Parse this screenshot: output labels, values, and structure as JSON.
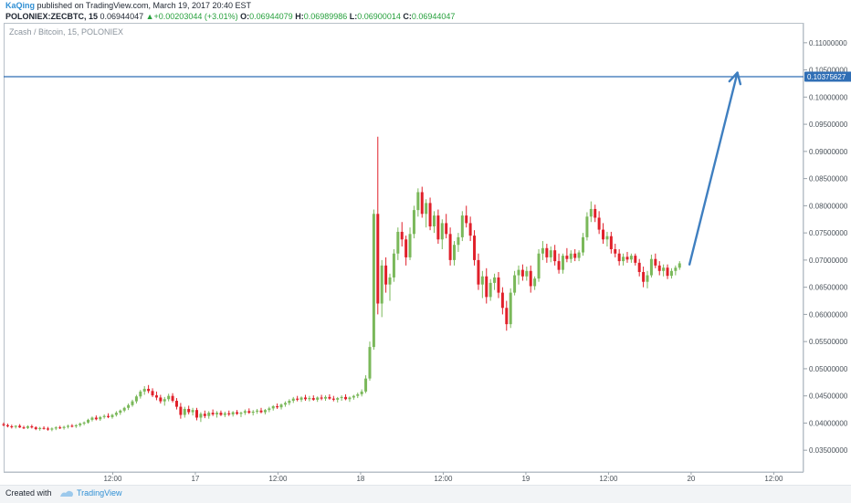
{
  "header": {
    "author": "KaQing",
    "published": "published on TradingView.com, March 19, 2017 20:40 EST",
    "symbol": "POLONIEX:ZECBTC, 15",
    "last": "0.06944047",
    "change": "+0.00203044 (+3.01%)",
    "open_label": "O:",
    "open": "0.06944079",
    "high_label": "H:",
    "high": "0.06989986",
    "low_label": "L:",
    "low": "0.06900014",
    "close_label": "C:",
    "close": "0.06944047",
    "up_color": "#26a03c"
  },
  "footer": {
    "created_with": "Created with",
    "brand": "TradingView"
  },
  "chart_data": {
    "type": "candlestick",
    "title": "Zcash / Bitcoin, 15, POLONIEX",
    "y_ticks": [
      "0.11000000",
      "0.10500000",
      "0.10000000",
      "0.09500000",
      "0.09000000",
      "0.08500000",
      "0.08000000",
      "0.07500000",
      "0.07000000",
      "0.06500000",
      "0.06000000",
      "0.05500000",
      "0.05000000",
      "0.04500000",
      "0.04000000",
      "0.03500000"
    ],
    "y_tick_values": [
      0.11,
      0.105,
      0.1,
      0.095,
      0.09,
      0.085,
      0.08,
      0.075,
      0.07,
      0.065,
      0.06,
      0.055,
      0.05,
      0.045,
      0.04,
      0.035
    ],
    "ylim": [
      0.031,
      0.1135
    ],
    "x_ticks": [
      "12:00",
      "17",
      "12:00",
      "18",
      "12:00",
      "19",
      "12:00",
      "20",
      "12:00"
    ],
    "x_tick_values": [
      0.5,
      1.0,
      1.5,
      2.0,
      2.5,
      3.0,
      3.5,
      4.0,
      4.5
    ],
    "xlim": [
      -0.16,
      4.68
    ],
    "horizontal_line": {
      "value": 0.10375627,
      "label": "0.10375627",
      "color": "#2f6eb5"
    },
    "arrow": {
      "from": [
        3.99,
        0.0692
      ],
      "to": [
        4.28,
        0.1045
      ],
      "color": "#3f7fc0"
    },
    "up_color": "#7ab85a",
    "down_color": "#e0202a",
    "candles_ohlc": [
      [
        0.0398,
        0.0401,
        0.0394,
        0.0396
      ],
      [
        0.0396,
        0.0399,
        0.0392,
        0.0394
      ],
      [
        0.0394,
        0.0397,
        0.039,
        0.0393
      ],
      [
        0.0393,
        0.0396,
        0.039,
        0.0395
      ],
      [
        0.0395,
        0.0398,
        0.0391,
        0.0392
      ],
      [
        0.0392,
        0.0395,
        0.0389,
        0.0391
      ],
      [
        0.0391,
        0.0396,
        0.0389,
        0.0394
      ],
      [
        0.0394,
        0.0397,
        0.039,
        0.0392
      ],
      [
        0.0392,
        0.0394,
        0.0387,
        0.0389
      ],
      [
        0.0389,
        0.0393,
        0.0386,
        0.0391
      ],
      [
        0.0391,
        0.0394,
        0.0388,
        0.039
      ],
      [
        0.039,
        0.0393,
        0.0386,
        0.0388
      ],
      [
        0.0388,
        0.0392,
        0.0385,
        0.039
      ],
      [
        0.039,
        0.0394,
        0.0387,
        0.0392
      ],
      [
        0.0392,
        0.0395,
        0.0389,
        0.0391
      ],
      [
        0.0391,
        0.0395,
        0.0388,
        0.0393
      ],
      [
        0.0393,
        0.0397,
        0.039,
        0.0395
      ],
      [
        0.0395,
        0.0398,
        0.0392,
        0.0394
      ],
      [
        0.0394,
        0.0398,
        0.0391,
        0.0396
      ],
      [
        0.0396,
        0.0401,
        0.0393,
        0.0399
      ],
      [
        0.0399,
        0.0403,
        0.0396,
        0.0401
      ],
      [
        0.0401,
        0.0408,
        0.0399,
        0.0406
      ],
      [
        0.0406,
        0.0412,
        0.0403,
        0.041
      ],
      [
        0.041,
        0.0414,
        0.0405,
        0.0407
      ],
      [
        0.0407,
        0.0413,
        0.0404,
        0.0411
      ],
      [
        0.0411,
        0.0416,
        0.0408,
        0.0413
      ],
      [
        0.0413,
        0.0418,
        0.0409,
        0.0411
      ],
      [
        0.0411,
        0.0417,
        0.0408,
        0.0415
      ],
      [
        0.0415,
        0.0422,
        0.0412,
        0.0419
      ],
      [
        0.0419,
        0.0425,
        0.0415,
        0.0423
      ],
      [
        0.0423,
        0.043,
        0.042,
        0.0428
      ],
      [
        0.0428,
        0.0436,
        0.0424,
        0.0433
      ],
      [
        0.0433,
        0.0443,
        0.043,
        0.044
      ],
      [
        0.044,
        0.0452,
        0.0436,
        0.0449
      ],
      [
        0.0449,
        0.0461,
        0.0445,
        0.0458
      ],
      [
        0.0458,
        0.0468,
        0.0452,
        0.0463
      ],
      [
        0.0463,
        0.047,
        0.0455,
        0.0459
      ],
      [
        0.0459,
        0.0464,
        0.0448,
        0.0451
      ],
      [
        0.0451,
        0.0458,
        0.0442,
        0.0447
      ],
      [
        0.0447,
        0.0452,
        0.0436,
        0.044
      ],
      [
        0.044,
        0.0448,
        0.0432,
        0.0444
      ],
      [
        0.0444,
        0.0454,
        0.044,
        0.045
      ],
      [
        0.045,
        0.0455,
        0.0438,
        0.0441
      ],
      [
        0.0441,
        0.0446,
        0.0425,
        0.043
      ],
      [
        0.043,
        0.0437,
        0.0408,
        0.0415
      ],
      [
        0.0415,
        0.043,
        0.041,
        0.0426
      ],
      [
        0.0426,
        0.0432,
        0.0416,
        0.042
      ],
      [
        0.042,
        0.0428,
        0.0414,
        0.0424
      ],
      [
        0.0424,
        0.0428,
        0.0405,
        0.041
      ],
      [
        0.041,
        0.042,
        0.0402,
        0.0417
      ],
      [
        0.0417,
        0.0423,
        0.0409,
        0.0413
      ],
      [
        0.0413,
        0.0422,
        0.0408,
        0.0419
      ],
      [
        0.0419,
        0.0425,
        0.0413,
        0.0416
      ],
      [
        0.0416,
        0.0422,
        0.041,
        0.0419
      ],
      [
        0.0419,
        0.0423,
        0.0413,
        0.0415
      ],
      [
        0.0415,
        0.0421,
        0.0411,
        0.0418
      ],
      [
        0.0418,
        0.0423,
        0.0413,
        0.0416
      ],
      [
        0.0416,
        0.0422,
        0.0412,
        0.042
      ],
      [
        0.042,
        0.0424,
        0.0415,
        0.0417
      ],
      [
        0.0417,
        0.0421,
        0.0411,
        0.0419
      ],
      [
        0.0419,
        0.0425,
        0.0415,
        0.0422
      ],
      [
        0.0422,
        0.0427,
        0.0417,
        0.0419
      ],
      [
        0.0419,
        0.0424,
        0.0414,
        0.0421
      ],
      [
        0.0421,
        0.0426,
        0.0417,
        0.0423
      ],
      [
        0.0423,
        0.0428,
        0.0418,
        0.042
      ],
      [
        0.042,
        0.0426,
        0.0416,
        0.0424
      ],
      [
        0.0424,
        0.043,
        0.042,
        0.0427
      ],
      [
        0.0427,
        0.0433,
        0.0423,
        0.0431
      ],
      [
        0.0431,
        0.0436,
        0.0426,
        0.0429
      ],
      [
        0.0429,
        0.0436,
        0.0425,
        0.0434
      ],
      [
        0.0434,
        0.044,
        0.043,
        0.0437
      ],
      [
        0.0437,
        0.0444,
        0.0433,
        0.0441
      ],
      [
        0.0441,
        0.0448,
        0.0437,
        0.0445
      ],
      [
        0.0445,
        0.045,
        0.044,
        0.0443
      ],
      [
        0.0443,
        0.0449,
        0.0439,
        0.0447
      ],
      [
        0.0447,
        0.0452,
        0.0441,
        0.0444
      ],
      [
        0.0444,
        0.045,
        0.044,
        0.0446
      ],
      [
        0.0446,
        0.0451,
        0.0441,
        0.0443
      ],
      [
        0.0443,
        0.0449,
        0.0439,
        0.0447
      ],
      [
        0.0447,
        0.0452,
        0.0442,
        0.0445
      ],
      [
        0.0445,
        0.0451,
        0.0441,
        0.0448
      ],
      [
        0.0448,
        0.0453,
        0.0443,
        0.0445
      ],
      [
        0.0445,
        0.045,
        0.044,
        0.0443
      ],
      [
        0.0443,
        0.0448,
        0.0438,
        0.0446
      ],
      [
        0.0446,
        0.0451,
        0.0441,
        0.0448
      ],
      [
        0.0448,
        0.0453,
        0.0442,
        0.0444
      ],
      [
        0.0444,
        0.0449,
        0.0439,
        0.0447
      ],
      [
        0.0447,
        0.0452,
        0.0443,
        0.045
      ],
      [
        0.045,
        0.0456,
        0.0446,
        0.0453
      ],
      [
        0.0453,
        0.0462,
        0.0449,
        0.0458
      ],
      [
        0.0458,
        0.0488,
        0.0455,
        0.0482
      ],
      [
        0.0482,
        0.055,
        0.0478,
        0.054
      ],
      [
        0.054,
        0.0793,
        0.0535,
        0.0785
      ],
      [
        0.0785,
        0.0927,
        0.06,
        0.062
      ],
      [
        0.062,
        0.07,
        0.0595,
        0.069
      ],
      [
        0.069,
        0.0705,
        0.064,
        0.0655
      ],
      [
        0.0655,
        0.0675,
        0.0625,
        0.0668
      ],
      [
        0.0668,
        0.072,
        0.066,
        0.0712
      ],
      [
        0.0712,
        0.076,
        0.07,
        0.0752
      ],
      [
        0.0752,
        0.077,
        0.0725,
        0.0738
      ],
      [
        0.0738,
        0.0745,
        0.069,
        0.0705
      ],
      [
        0.0705,
        0.076,
        0.07,
        0.0748
      ],
      [
        0.0748,
        0.08,
        0.074,
        0.0792
      ],
      [
        0.0792,
        0.0832,
        0.078,
        0.0825
      ],
      [
        0.0825,
        0.0835,
        0.0778,
        0.0785
      ],
      [
        0.0785,
        0.0812,
        0.076,
        0.0805
      ],
      [
        0.0805,
        0.0815,
        0.0755,
        0.0762
      ],
      [
        0.0762,
        0.079,
        0.075,
        0.0782
      ],
      [
        0.0782,
        0.0793,
        0.073,
        0.0738
      ],
      [
        0.0738,
        0.0775,
        0.072,
        0.0768
      ],
      [
        0.0768,
        0.0785,
        0.074,
        0.0748
      ],
      [
        0.0748,
        0.076,
        0.069,
        0.07
      ],
      [
        0.07,
        0.0735,
        0.069,
        0.0728
      ],
      [
        0.0728,
        0.075,
        0.0715,
        0.0742
      ],
      [
        0.0742,
        0.079,
        0.0735,
        0.0782
      ],
      [
        0.0782,
        0.08,
        0.076,
        0.0768
      ],
      [
        0.0768,
        0.078,
        0.0735,
        0.0745
      ],
      [
        0.0745,
        0.0755,
        0.069,
        0.07
      ],
      [
        0.07,
        0.0712,
        0.0645,
        0.0655
      ],
      [
        0.0655,
        0.068,
        0.063,
        0.067
      ],
      [
        0.067,
        0.0685,
        0.062,
        0.0632
      ],
      [
        0.0632,
        0.0665,
        0.0625,
        0.0658
      ],
      [
        0.0658,
        0.0675,
        0.0645,
        0.0668
      ],
      [
        0.0668,
        0.0678,
        0.063,
        0.064
      ],
      [
        0.064,
        0.065,
        0.06,
        0.0612
      ],
      [
        0.0612,
        0.0625,
        0.057,
        0.0582
      ],
      [
        0.0582,
        0.0648,
        0.0575,
        0.064
      ],
      [
        0.064,
        0.068,
        0.0635,
        0.0672
      ],
      [
        0.0672,
        0.069,
        0.0655,
        0.0682
      ],
      [
        0.0682,
        0.0692,
        0.0662,
        0.067
      ],
      [
        0.067,
        0.0688,
        0.0662,
        0.068
      ],
      [
        0.068,
        0.069,
        0.064,
        0.0652
      ],
      [
        0.0652,
        0.067,
        0.0645,
        0.0666
      ],
      [
        0.0666,
        0.072,
        0.066,
        0.0712
      ],
      [
        0.0712,
        0.0735,
        0.07,
        0.0722
      ],
      [
        0.0722,
        0.073,
        0.0695,
        0.0705
      ],
      [
        0.0705,
        0.0725,
        0.0696,
        0.0718
      ],
      [
        0.0718,
        0.0728,
        0.069,
        0.0698
      ],
      [
        0.0698,
        0.0712,
        0.0675,
        0.0682
      ],
      [
        0.0682,
        0.0712,
        0.0675,
        0.0708
      ],
      [
        0.0708,
        0.0722,
        0.0696,
        0.0702
      ],
      [
        0.0702,
        0.0718,
        0.0695,
        0.0712
      ],
      [
        0.0712,
        0.072,
        0.0698,
        0.0704
      ],
      [
        0.0704,
        0.0718,
        0.0698,
        0.0714
      ],
      [
        0.0714,
        0.075,
        0.0708,
        0.0742
      ],
      [
        0.0742,
        0.0788,
        0.0736,
        0.078
      ],
      [
        0.078,
        0.0808,
        0.077,
        0.0794
      ],
      [
        0.0794,
        0.0802,
        0.077,
        0.0778
      ],
      [
        0.0778,
        0.079,
        0.0748,
        0.0756
      ],
      [
        0.0756,
        0.0768,
        0.073,
        0.0738
      ],
      [
        0.0738,
        0.0752,
        0.0725,
        0.0744
      ],
      [
        0.0744,
        0.0752,
        0.0712,
        0.072
      ],
      [
        0.072,
        0.073,
        0.0705,
        0.0712
      ],
      [
        0.0712,
        0.072,
        0.069,
        0.0698
      ],
      [
        0.0698,
        0.0712,
        0.069,
        0.0706
      ],
      [
        0.0706,
        0.0715,
        0.0695,
        0.0701
      ],
      [
        0.0701,
        0.0712,
        0.0695,
        0.0708
      ],
      [
        0.0708,
        0.0712,
        0.069,
        0.0695
      ],
      [
        0.0695,
        0.0702,
        0.067,
        0.0678
      ],
      [
        0.0678,
        0.0688,
        0.065,
        0.066
      ],
      [
        0.066,
        0.068,
        0.0648,
        0.0672
      ],
      [
        0.0672,
        0.071,
        0.0668,
        0.0702
      ],
      [
        0.0702,
        0.0712,
        0.0685,
        0.069
      ],
      [
        0.069,
        0.0698,
        0.0672,
        0.068
      ],
      [
        0.068,
        0.0692,
        0.067,
        0.0686
      ],
      [
        0.0686,
        0.0692,
        0.0665,
        0.0671
      ],
      [
        0.0671,
        0.0685,
        0.0666,
        0.068
      ],
      [
        0.068,
        0.069,
        0.0672,
        0.0686
      ],
      [
        0.0686,
        0.0698,
        0.0682,
        0.0694
      ]
    ]
  }
}
